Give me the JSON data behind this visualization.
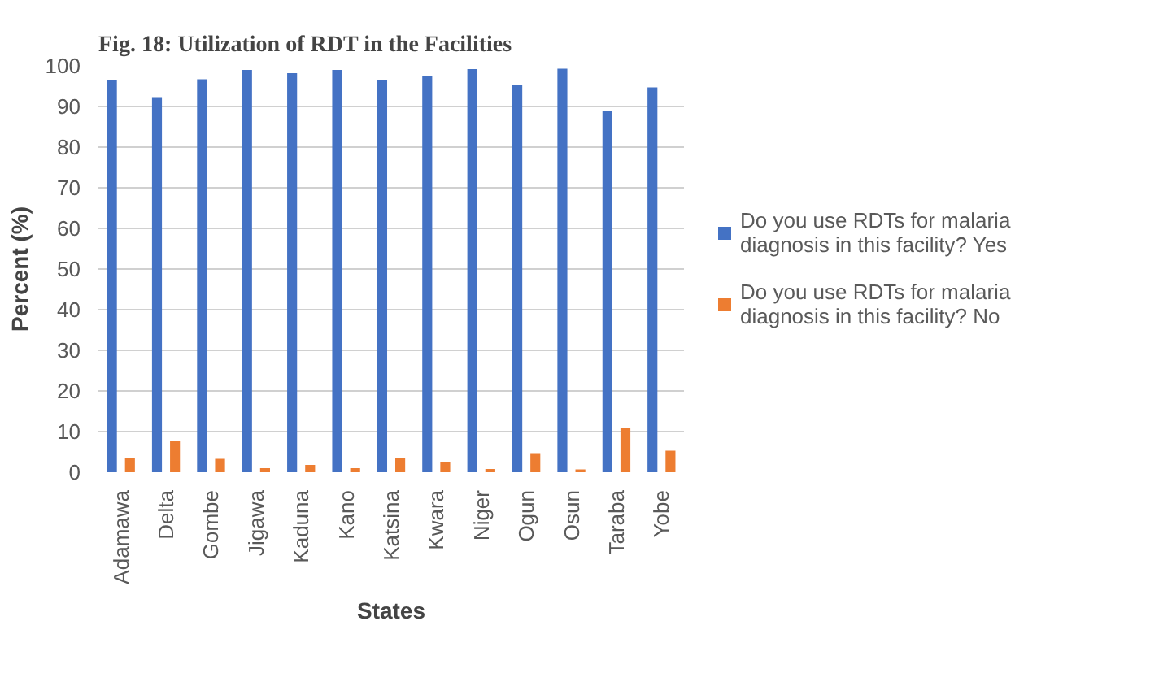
{
  "chart_data": {
    "type": "bar",
    "title": "Fig. 18: Utilization of RDT in the Facilities",
    "xlabel": "States",
    "ylabel": "Percent (%)",
    "categories": [
      "Adamawa",
      "Delta",
      "Gombe",
      "Jigawa",
      "Kaduna",
      "Kano",
      "Katsina",
      "Kwara",
      "Niger",
      "Ogun",
      "Osun",
      "Taraba",
      "Yobe"
    ],
    "series": [
      {
        "name": "Do you use RDTs for malaria diagnosis in this facility? Yes",
        "color": "#4472c4",
        "values": [
          96.5,
          92.3,
          96.7,
          99,
          98.2,
          99,
          96.6,
          97.5,
          99.2,
          95.3,
          99.3,
          89,
          94.7
        ]
      },
      {
        "name": "Do you use RDTs for malaria diagnosis in this facility? No",
        "color": "#ed7d31",
        "values": [
          3.5,
          7.7,
          3.3,
          1,
          1.8,
          1,
          3.4,
          2.5,
          0.8,
          4.7,
          0.7,
          11,
          5.3
        ]
      }
    ],
    "ylim": [
      0,
      100
    ],
    "yticks": [
      0,
      10,
      20,
      30,
      40,
      50,
      60,
      70,
      80,
      90,
      100
    ],
    "grid": "y",
    "legend": "right"
  }
}
